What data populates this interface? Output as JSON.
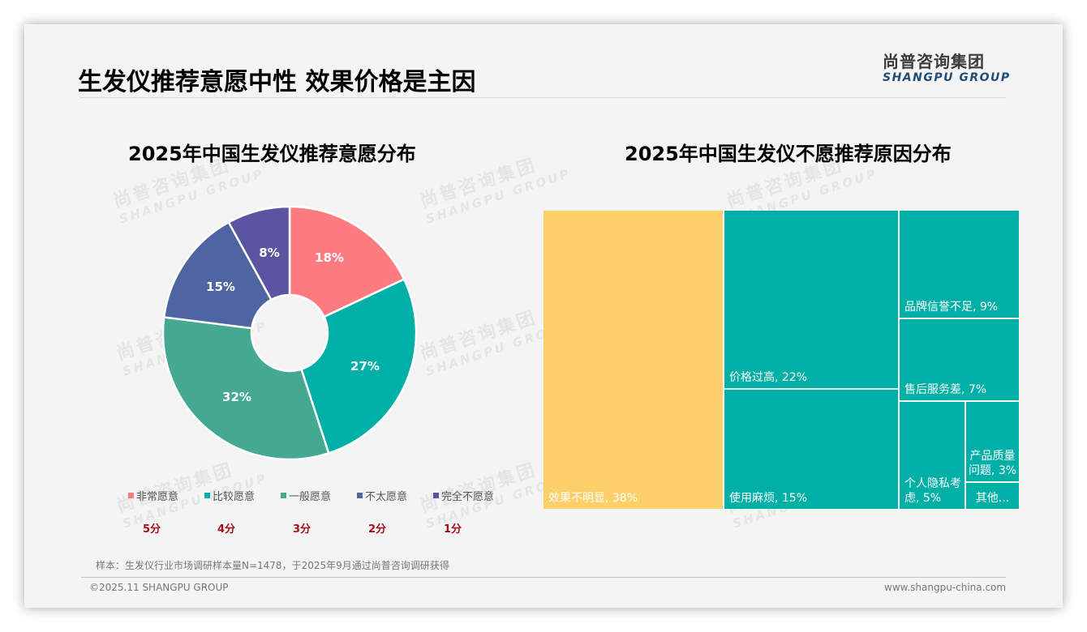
{
  "page": {
    "title": "生发仪推荐意愿中性 效果价格是主因",
    "logo": {
      "cn": "尚普咨询集团",
      "en": "SHANGPU GROUP"
    },
    "watermark": {
      "cn": "尚普咨询集团",
      "en": "SHANGPU GROUP"
    },
    "note": "样本：生发仪行业市场调研样本量N=1478，于2025年9月通过尚普咨询调研获得",
    "copyright": "©2025.11 SHANGPU GROUP",
    "website": "www.shangpu-china.com"
  },
  "colors": {
    "pink": "#fe7c80",
    "teal": "#00b0a7",
    "green": "#44a892",
    "blue": "#4f65a1",
    "purple": "#5b55a1",
    "yellow": "#fdcf68",
    "score_red": "#a50f15"
  },
  "left_chart": {
    "title": "2025年中国生发仪推荐意愿分布",
    "legend": [
      {
        "label": "非常愿意",
        "score": "5分",
        "color": "#fe7c80"
      },
      {
        "label": "比较愿意",
        "score": "4分",
        "color": "#00b0a7"
      },
      {
        "label": "一般愿意",
        "score": "3分",
        "color": "#44a892"
      },
      {
        "label": "不太愿意",
        "score": "2分",
        "color": "#4f65a1"
      },
      {
        "label": "完全不愿意",
        "score": "1分",
        "color": "#5b55a1"
      }
    ],
    "slice_labels": [
      "18%",
      "27%",
      "32%",
      "15%",
      "8%"
    ]
  },
  "right_chart": {
    "title": "2025年中国生发仪不愿推荐原因分布",
    "tiles": [
      {
        "label": "效果不明显, 38%"
      },
      {
        "label": "价格过高, 22%"
      },
      {
        "label": "使用麻烦, 15%"
      },
      {
        "label": "品牌信誉不足, 9%"
      },
      {
        "label": "售后服务差, 7%"
      },
      {
        "label": "个人隐私考虑, 5%"
      },
      {
        "label": "产品质量问题, 3%"
      },
      {
        "label": "其他..."
      }
    ]
  },
  "chart_data": [
    {
      "type": "pie",
      "title": "2025年中国生发仪推荐意愿分布",
      "donut": true,
      "categories": [
        "非常愿意",
        "比较愿意",
        "一般愿意",
        "不太愿意",
        "完全不愿意"
      ],
      "scores": [
        "5分",
        "4分",
        "3分",
        "2分",
        "1分"
      ],
      "values": [
        18,
        27,
        32,
        15,
        8
      ],
      "unit": "%",
      "colors": [
        "#fe7c80",
        "#00b0a7",
        "#44a892",
        "#4f65a1",
        "#5b55a1"
      ],
      "legend_position": "bottom"
    },
    {
      "type": "treemap",
      "title": "2025年中国生发仪不愿推荐原因分布",
      "categories": [
        "效果不明显",
        "价格过高",
        "使用麻烦",
        "品牌信誉不足",
        "售后服务差",
        "个人隐私考虑",
        "产品质量问题",
        "其他"
      ],
      "values": [
        38,
        22,
        15,
        9,
        7,
        5,
        3,
        1
      ],
      "unit": "%",
      "note": "其他 value not displayed (label truncated as '其他...'); 1 inferred as remainder",
      "colors": [
        "#fdcf68",
        "#00b0a7",
        "#00b0a7",
        "#00b0a7",
        "#00b0a7",
        "#00b0a7",
        "#00b0a7",
        "#00b0a7"
      ]
    }
  ]
}
